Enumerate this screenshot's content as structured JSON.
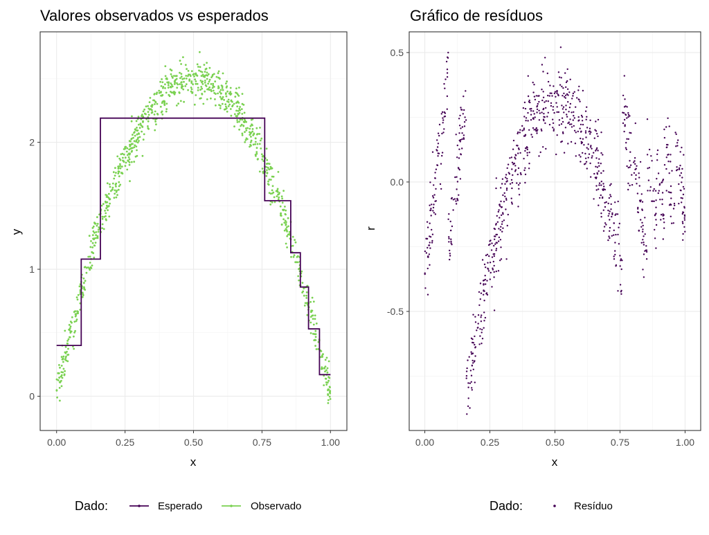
{
  "colors": {
    "expected": "#440154",
    "observed": "#7AD151",
    "residual": "#440154"
  },
  "chart_data": [
    {
      "type": "scatter",
      "title": "Valores observados vs esperados",
      "xlabel": "x",
      "ylabel": "y",
      "xlim": [
        -0.06,
        1.06
      ],
      "ylim": [
        -0.27,
        2.87
      ],
      "xticks": [
        0,
        0.25,
        0.5,
        0.75,
        1
      ],
      "xtick_labels": [
        "0.00",
        "0.25",
        "0.50",
        "0.75",
        "1.00"
      ],
      "yticks": [
        0,
        1,
        2
      ],
      "ytick_labels": [
        "0",
        "1",
        "2"
      ],
      "grid": true,
      "legend": {
        "title": "Dado:",
        "position": "bottom",
        "entries": [
          "Esperado",
          "Observado"
        ]
      },
      "series": [
        {
          "name": "Esperado",
          "kind": "step",
          "x": [
            0.0,
            0.09,
            0.09,
            0.16,
            0.16,
            0.76,
            0.76,
            0.855,
            0.855,
            0.89,
            0.89,
            0.92,
            0.92,
            0.96,
            0.96,
            1.0
          ],
          "y": [
            0.4,
            0.4,
            1.08,
            1.08,
            2.19,
            2.19,
            1.54,
            1.54,
            1.13,
            1.13,
            0.86,
            0.86,
            0.53,
            0.53,
            0.17,
            0.17
          ]
        },
        {
          "name": "Observado",
          "kind": "points",
          "n": 1000,
          "x_range": [
            0,
            1
          ],
          "trend": "y = 10*x*(1-x) approx",
          "sample_x": [
            0.0,
            0.05,
            0.1,
            0.15,
            0.2,
            0.25,
            0.3,
            0.35,
            0.4,
            0.45,
            0.5,
            0.55,
            0.6,
            0.65,
            0.7,
            0.75,
            0.8,
            0.85,
            0.9,
            0.95,
            1.0
          ],
          "sample_y": [
            0.05,
            0.48,
            0.9,
            1.3,
            1.62,
            1.88,
            2.1,
            2.28,
            2.4,
            2.48,
            2.5,
            2.48,
            2.4,
            2.28,
            2.1,
            1.88,
            1.6,
            1.28,
            0.9,
            0.48,
            0.05
          ],
          "noise_sd": 0.08
        }
      ]
    },
    {
      "type": "scatter",
      "title": "Gráfico de resíduos",
      "xlabel": "x",
      "ylabel": "r",
      "xlim": [
        -0.06,
        1.06
      ],
      "ylim": [
        -0.96,
        0.58
      ],
      "xticks": [
        0,
        0.25,
        0.5,
        0.75,
        1
      ],
      "xtick_labels": [
        "0.00",
        "0.25",
        "0.50",
        "0.75",
        "1.00"
      ],
      "yticks": [
        -0.5,
        0,
        0.5
      ],
      "ytick_labels": [
        "-0.5",
        "0.0",
        "0.5"
      ],
      "grid": true,
      "legend": {
        "title": "Dado:",
        "position": "bottom",
        "entries": [
          "Resíduo"
        ]
      },
      "series": [
        {
          "name": "Resíduo",
          "kind": "points",
          "n": 1000,
          "x_range": [
            0,
            1
          ],
          "definition": "Observado - Esperado",
          "value_range": [
            -0.9,
            0.53
          ],
          "noise_sd": 0.08
        }
      ]
    }
  ]
}
